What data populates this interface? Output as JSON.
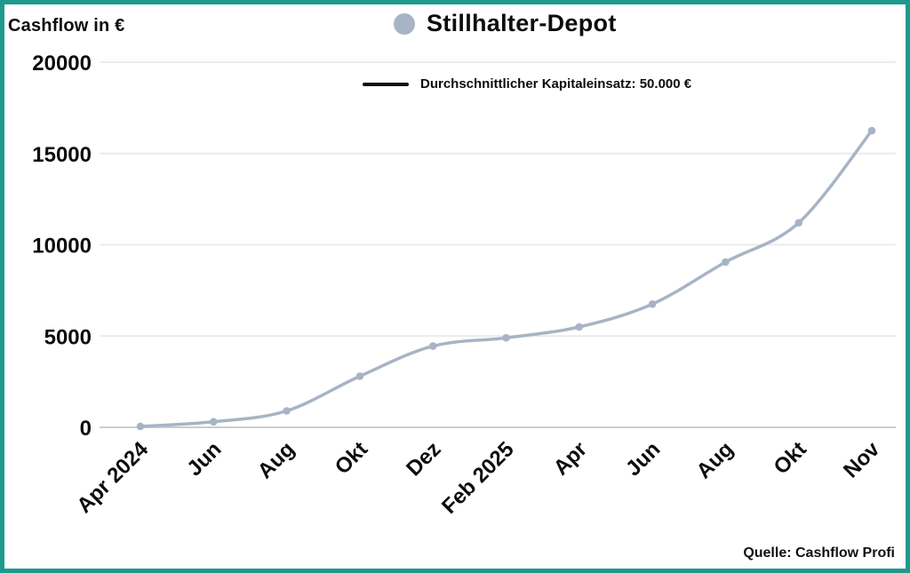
{
  "frame": {
    "border_color": "#1e9a8d",
    "background": "#ffffff"
  },
  "header": {
    "y_axis_title": "Cashflow in €"
  },
  "legend": {
    "series": {
      "label": "Stillhalter-Depot",
      "marker_color": "#a7b4c5"
    },
    "reference": {
      "label": "Durchschnittlicher Kapitaleinsatz: 50.000 €",
      "line_color": "#111111"
    }
  },
  "footer": {
    "source": "Quelle: Cashflow Profi"
  },
  "chart_data": {
    "type": "line",
    "title": "Stillhalter-Depot",
    "categories": [
      "Apr 2024",
      "Jun",
      "Aug",
      "Okt",
      "Dez",
      "Feb 2025",
      "Apr",
      "Jun",
      "Aug",
      "Okt",
      "Nov"
    ],
    "series": [
      {
        "name": "Stillhalter-Depot",
        "color": "#a7b4c5",
        "values": [
          50,
          300,
          900,
          2800,
          4450,
          4900,
          5500,
          6750,
          9050,
          11200,
          16250
        ]
      }
    ],
    "reference_legend": {
      "label": "Durchschnittlicher Kapitaleinsatz: 50.000 €",
      "value_eur": 50000,
      "color": "#111111",
      "shown_in_plot": false
    },
    "ylabel": "Cashflow in €",
    "xlabel": "",
    "ylim": [
      0,
      20000
    ],
    "yticks": [
      0,
      5000,
      10000,
      15000,
      20000
    ],
    "grid": true,
    "gridline_color": "#ebebeb",
    "baseline_color": "#c9cdd1",
    "legend_position": "top-center",
    "x_tick_rotation_deg": -45
  }
}
